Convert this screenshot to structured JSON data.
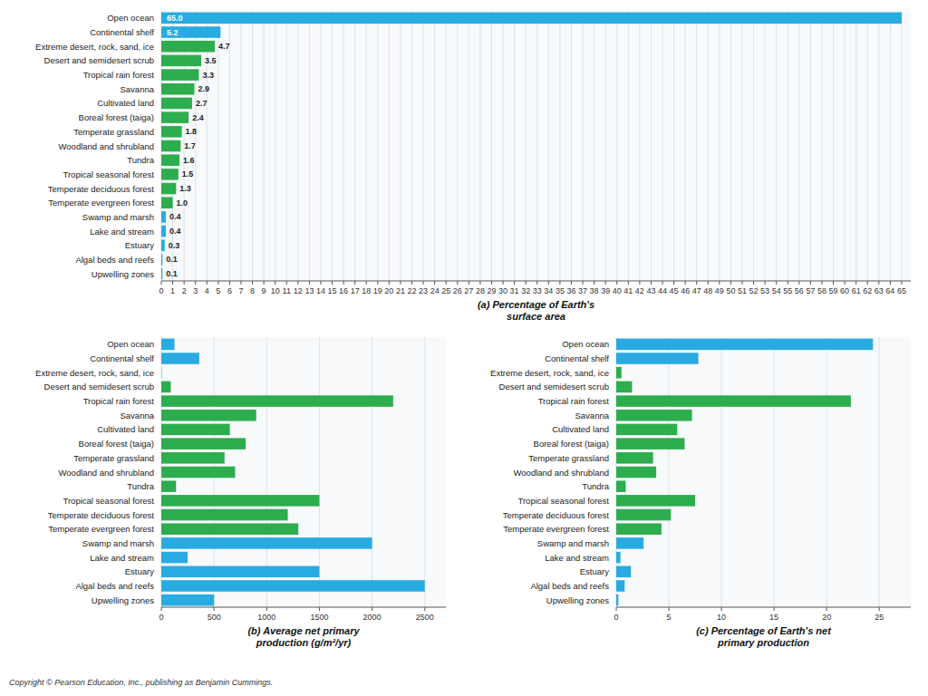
{
  "chart_data": [
    {
      "type": "bar",
      "orientation": "horizontal",
      "title": "(a) Percentage of Earth's\nsurface area",
      "categories": [
        "Open ocean",
        "Continental shelf",
        "Extreme desert, rock, sand, ice",
        "Desert and semidesert scrub",
        "Tropical rain forest",
        "Savanna",
        "Cultivated land",
        "Boreal forest (taiga)",
        "Temperate grassland",
        "Woodland and shrubland",
        "Tundra",
        "Tropical seasonal forest",
        "Temperate deciduous forest",
        "Temperate evergreen forest",
        "Swamp and marsh",
        "Lake and stream",
        "Estuary",
        "Algal beds and reefs",
        "Upwelling zones"
      ],
      "values": [
        65.0,
        5.2,
        4.7,
        3.5,
        3.3,
        2.9,
        2.7,
        2.4,
        1.8,
        1.7,
        1.6,
        1.5,
        1.3,
        1.0,
        0.4,
        0.4,
        0.3,
        0.1,
        0.1
      ],
      "value_labels": [
        "65.0",
        "5.2",
        "4.7",
        "3.5",
        "3.3",
        "2.9",
        "2.7",
        "2.4",
        "1.8",
        "1.7",
        "1.6",
        "1.5",
        "1.3",
        "1.0",
        "0.4",
        "0.4",
        "0.3",
        "0.1",
        "0.1"
      ],
      "data_labels": true,
      "colors": [
        "#29ABE2",
        "#29ABE2",
        "#2EAD4E",
        "#2EAD4E",
        "#2EAD4E",
        "#2EAD4E",
        "#2EAD4E",
        "#2EAD4E",
        "#2EAD4E",
        "#2EAD4E",
        "#2EAD4E",
        "#2EAD4E",
        "#2EAD4E",
        "#2EAD4E",
        "#29ABE2",
        "#29ABE2",
        "#29ABE2",
        "#29ABE2",
        "#29ABE2"
      ],
      "xlim": [
        0,
        65.8
      ],
      "xticks": [
        0,
        1,
        2,
        3,
        4,
        5,
        6,
        7,
        8,
        9,
        10,
        11,
        12,
        13,
        14,
        15,
        16,
        17,
        18,
        19,
        20,
        21,
        22,
        23,
        24,
        25,
        26,
        27,
        28,
        29,
        30,
        31,
        32,
        33,
        34,
        35,
        36,
        37,
        38,
        39,
        40,
        41,
        42,
        43,
        44,
        45,
        46,
        47,
        48,
        49,
        50,
        51,
        52,
        53,
        54,
        55,
        56,
        57,
        58,
        59,
        60,
        61,
        62,
        63,
        64,
        65
      ],
      "grid": true
    },
    {
      "type": "bar",
      "orientation": "horizontal",
      "title": "(b) Average net primary\nproduction (g/m²/yr)",
      "categories": [
        "Open ocean",
        "Continental shelf",
        "Extreme desert, rock, sand, ice",
        "Desert and semidesert scrub",
        "Tropical rain forest",
        "Savanna",
        "Cultivated land",
        "Boreal forest (taiga)",
        "Temperate grassland",
        "Woodland and shrubland",
        "Tundra",
        "Tropical seasonal forest",
        "Temperate deciduous forest",
        "Temperate evergreen forest",
        "Swamp and marsh",
        "Lake and stream",
        "Estuary",
        "Algal beds and reefs",
        "Upwelling zones"
      ],
      "values": [
        125,
        360,
        3,
        90,
        2200,
        900,
        650,
        800,
        600,
        700,
        140,
        1500,
        1200,
        1300,
        2000,
        250,
        1500,
        2500,
        500
      ],
      "data_labels": false,
      "colors": [
        "#29ABE2",
        "#29ABE2",
        "#2EAD4E",
        "#2EAD4E",
        "#2EAD4E",
        "#2EAD4E",
        "#2EAD4E",
        "#2EAD4E",
        "#2EAD4E",
        "#2EAD4E",
        "#2EAD4E",
        "#2EAD4E",
        "#2EAD4E",
        "#2EAD4E",
        "#29ABE2",
        "#29ABE2",
        "#29ABE2",
        "#29ABE2",
        "#29ABE2"
      ],
      "xlim": [
        0,
        2700
      ],
      "xticks": [
        0,
        500,
        1000,
        1500,
        2000,
        2500
      ],
      "grid": true
    },
    {
      "type": "bar",
      "orientation": "horizontal",
      "title": "(c) Percentage of Earth's net\nprimary production",
      "categories": [
        "Open ocean",
        "Continental shelf",
        "Extreme desert, rock, sand, ice",
        "Desert and semidesert scrub",
        "Tropical rain forest",
        "Savanna",
        "Cultivated land",
        "Boreal forest (taiga)",
        "Temperate grassland",
        "Woodland and shrubland",
        "Tundra",
        "Tropical seasonal forest",
        "Temperate deciduous forest",
        "Temperate evergreen forest",
        "Swamp and marsh",
        "Lake and stream",
        "Estuary",
        "Algal beds and reefs",
        "Upwelling zones"
      ],
      "values": [
        24.4,
        7.8,
        0.5,
        1.5,
        22.3,
        7.2,
        5.8,
        6.5,
        3.5,
        3.8,
        0.9,
        7.5,
        5.2,
        4.3,
        2.6,
        0.4,
        1.4,
        0.8,
        0.2
      ],
      "data_labels": false,
      "colors": [
        "#29ABE2",
        "#29ABE2",
        "#2EAD4E",
        "#2EAD4E",
        "#2EAD4E",
        "#2EAD4E",
        "#2EAD4E",
        "#2EAD4E",
        "#2EAD4E",
        "#2EAD4E",
        "#2EAD4E",
        "#2EAD4E",
        "#2EAD4E",
        "#2EAD4E",
        "#29ABE2",
        "#29ABE2",
        "#29ABE2",
        "#29ABE2",
        "#29ABE2"
      ],
      "xlim": [
        0,
        28
      ],
      "xticks": [
        0,
        5,
        10,
        15,
        20,
        25
      ],
      "grid": true
    }
  ],
  "caption": "Copyright © Pearson Education, Inc., publishing as Benjamin Cummings."
}
